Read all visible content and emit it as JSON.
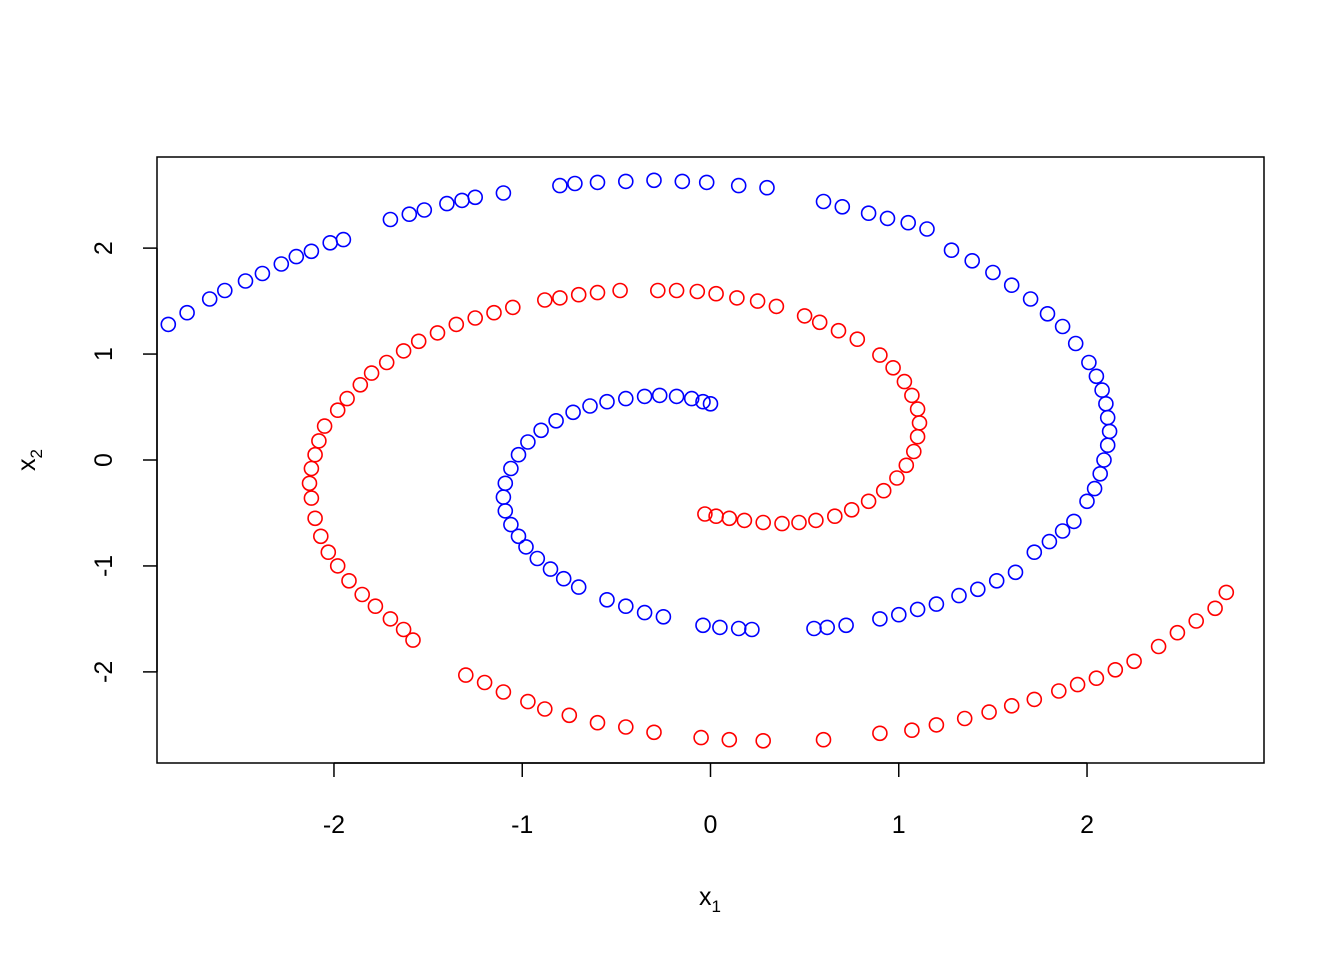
{
  "chart_data": {
    "type": "scatter",
    "title": "",
    "xlabel": {
      "base": "x",
      "sub": "1"
    },
    "ylabel": {
      "base": "x",
      "sub": "2"
    },
    "xlim": [
      -2.94,
      2.94
    ],
    "ylim": [
      -2.86,
      2.86
    ],
    "x_ticks": [
      -2,
      -1,
      0,
      1,
      2
    ],
    "x_tick_labels": [
      "-2",
      "-1",
      "0",
      "1",
      "2"
    ],
    "y_ticks": [
      -2,
      -1,
      0,
      1,
      2
    ],
    "y_tick_labels": [
      "-2",
      "-1",
      "0",
      "1",
      "2"
    ],
    "grid": false,
    "marker": "open-circle",
    "series": [
      {
        "color": "#0000ff",
        "points": [
          [
            0.0,
            0.53
          ],
          [
            -0.04,
            0.55
          ],
          [
            -0.1,
            0.58
          ],
          [
            -0.18,
            0.6
          ],
          [
            -0.27,
            0.61
          ],
          [
            -0.35,
            0.6
          ],
          [
            -0.45,
            0.58
          ],
          [
            -0.55,
            0.55
          ],
          [
            -0.64,
            0.51
          ],
          [
            -0.73,
            0.45
          ],
          [
            -0.82,
            0.37
          ],
          [
            -0.9,
            0.28
          ],
          [
            -0.97,
            0.17
          ],
          [
            -1.02,
            0.05
          ],
          [
            -1.06,
            -0.08
          ],
          [
            -1.09,
            -0.22
          ],
          [
            -1.1,
            -0.35
          ],
          [
            -1.09,
            -0.48
          ],
          [
            -1.06,
            -0.61
          ],
          [
            -1.02,
            -0.72
          ],
          [
            -0.98,
            -0.82
          ],
          [
            -0.92,
            -0.93
          ],
          [
            -0.85,
            -1.03
          ],
          [
            -0.78,
            -1.12
          ],
          [
            -0.7,
            -1.2
          ],
          [
            -0.55,
            -1.32
          ],
          [
            -0.45,
            -1.38
          ],
          [
            -0.35,
            -1.44
          ],
          [
            -0.25,
            -1.48
          ],
          [
            -0.04,
            -1.56
          ],
          [
            0.05,
            -1.58
          ],
          [
            0.15,
            -1.59
          ],
          [
            0.22,
            -1.6
          ],
          [
            0.55,
            -1.59
          ],
          [
            0.62,
            -1.58
          ],
          [
            0.72,
            -1.56
          ],
          [
            0.9,
            -1.5
          ],
          [
            1.0,
            -1.46
          ],
          [
            1.1,
            -1.41
          ],
          [
            1.2,
            -1.36
          ],
          [
            1.32,
            -1.28
          ],
          [
            1.42,
            -1.22
          ],
          [
            1.52,
            -1.14
          ],
          [
            1.62,
            -1.06
          ],
          [
            1.72,
            -0.87
          ],
          [
            1.8,
            -0.77
          ],
          [
            1.87,
            -0.67
          ],
          [
            1.93,
            -0.58
          ],
          [
            2.0,
            -0.39
          ],
          [
            2.04,
            -0.27
          ],
          [
            2.07,
            -0.13
          ],
          [
            2.09,
            0.0
          ],
          [
            2.11,
            0.14
          ],
          [
            2.12,
            0.27
          ],
          [
            2.11,
            0.4
          ],
          [
            2.1,
            0.53
          ],
          [
            2.08,
            0.66
          ],
          [
            2.05,
            0.79
          ],
          [
            2.01,
            0.92
          ],
          [
            1.94,
            1.1
          ],
          [
            1.87,
            1.26
          ],
          [
            1.79,
            1.38
          ],
          [
            1.7,
            1.52
          ],
          [
            1.6,
            1.65
          ],
          [
            1.5,
            1.77
          ],
          [
            1.39,
            1.88
          ],
          [
            1.28,
            1.98
          ],
          [
            1.15,
            2.18
          ],
          [
            1.05,
            2.24
          ],
          [
            0.94,
            2.28
          ],
          [
            0.84,
            2.33
          ],
          [
            0.7,
            2.39
          ],
          [
            0.6,
            2.44
          ],
          [
            0.3,
            2.57
          ],
          [
            0.15,
            2.59
          ],
          [
            -0.02,
            2.62
          ],
          [
            -0.15,
            2.63
          ],
          [
            -0.3,
            2.64
          ],
          [
            -0.45,
            2.63
          ],
          [
            -0.6,
            2.62
          ],
          [
            -0.72,
            2.61
          ],
          [
            -0.8,
            2.59
          ],
          [
            -1.1,
            2.52
          ],
          [
            -1.25,
            2.48
          ],
          [
            -1.32,
            2.45
          ],
          [
            -1.4,
            2.42
          ],
          [
            -1.52,
            2.36
          ],
          [
            -1.6,
            2.32
          ],
          [
            -1.7,
            2.27
          ],
          [
            -1.95,
            2.08
          ],
          [
            -2.02,
            2.05
          ],
          [
            -2.12,
            1.97
          ],
          [
            -2.2,
            1.92
          ],
          [
            -2.28,
            1.85
          ],
          [
            -2.38,
            1.76
          ],
          [
            -2.47,
            1.69
          ],
          [
            -2.58,
            1.6
          ],
          [
            -2.66,
            1.52
          ],
          [
            -2.78,
            1.39
          ],
          [
            -2.88,
            1.28
          ]
        ]
      },
      {
        "color": "#ff0000",
        "points": [
          [
            -0.03,
            -0.51
          ],
          [
            0.03,
            -0.53
          ],
          [
            0.1,
            -0.55
          ],
          [
            0.18,
            -0.57
          ],
          [
            0.28,
            -0.59
          ],
          [
            0.38,
            -0.6
          ],
          [
            0.47,
            -0.59
          ],
          [
            0.56,
            -0.57
          ],
          [
            0.66,
            -0.53
          ],
          [
            0.75,
            -0.47
          ],
          [
            0.84,
            -0.39
          ],
          [
            0.92,
            -0.29
          ],
          [
            0.99,
            -0.17
          ],
          [
            1.04,
            -0.05
          ],
          [
            1.08,
            0.08
          ],
          [
            1.1,
            0.22
          ],
          [
            1.11,
            0.35
          ],
          [
            1.1,
            0.48
          ],
          [
            1.07,
            0.61
          ],
          [
            1.03,
            0.74
          ],
          [
            0.97,
            0.87
          ],
          [
            0.9,
            0.99
          ],
          [
            0.78,
            1.14
          ],
          [
            0.68,
            1.22
          ],
          [
            0.58,
            1.3
          ],
          [
            0.5,
            1.36
          ],
          [
            0.35,
            1.45
          ],
          [
            0.25,
            1.5
          ],
          [
            0.14,
            1.53
          ],
          [
            0.03,
            1.57
          ],
          [
            -0.07,
            1.59
          ],
          [
            -0.18,
            1.6
          ],
          [
            -0.28,
            1.6
          ],
          [
            -0.48,
            1.6
          ],
          [
            -0.6,
            1.58
          ],
          [
            -0.7,
            1.56
          ],
          [
            -0.8,
            1.53
          ],
          [
            -0.88,
            1.51
          ],
          [
            -1.05,
            1.44
          ],
          [
            -1.15,
            1.39
          ],
          [
            -1.25,
            1.34
          ],
          [
            -1.35,
            1.28
          ],
          [
            -1.45,
            1.2
          ],
          [
            -1.55,
            1.12
          ],
          [
            -1.63,
            1.03
          ],
          [
            -1.72,
            0.92
          ],
          [
            -1.8,
            0.82
          ],
          [
            -1.86,
            0.71
          ],
          [
            -1.93,
            0.58
          ],
          [
            -1.98,
            0.47
          ],
          [
            -2.05,
            0.32
          ],
          [
            -2.08,
            0.18
          ],
          [
            -2.1,
            0.05
          ],
          [
            -2.12,
            -0.08
          ],
          [
            -2.13,
            -0.22
          ],
          [
            -2.12,
            -0.36
          ],
          [
            -2.1,
            -0.55
          ],
          [
            -2.07,
            -0.72
          ],
          [
            -2.03,
            -0.87
          ],
          [
            -1.98,
            -1.0
          ],
          [
            -1.92,
            -1.14
          ],
          [
            -1.85,
            -1.27
          ],
          [
            -1.78,
            -1.38
          ],
          [
            -1.7,
            -1.5
          ],
          [
            -1.63,
            -1.6
          ],
          [
            -1.58,
            -1.7
          ],
          [
            -1.3,
            -2.03
          ],
          [
            -1.2,
            -2.1
          ],
          [
            -1.1,
            -2.19
          ],
          [
            -0.97,
            -2.28
          ],
          [
            -0.88,
            -2.35
          ],
          [
            -0.75,
            -2.41
          ],
          [
            -0.6,
            -2.48
          ],
          [
            -0.45,
            -2.52
          ],
          [
            -0.3,
            -2.57
          ],
          [
            -0.05,
            -2.62
          ],
          [
            0.1,
            -2.64
          ],
          [
            0.28,
            -2.65
          ],
          [
            0.6,
            -2.64
          ],
          [
            0.9,
            -2.58
          ],
          [
            1.07,
            -2.55
          ],
          [
            1.2,
            -2.5
          ],
          [
            1.35,
            -2.44
          ],
          [
            1.48,
            -2.38
          ],
          [
            1.6,
            -2.32
          ],
          [
            1.72,
            -2.26
          ],
          [
            1.85,
            -2.18
          ],
          [
            1.95,
            -2.12
          ],
          [
            2.05,
            -2.06
          ],
          [
            2.15,
            -1.98
          ],
          [
            2.25,
            -1.9
          ],
          [
            2.38,
            -1.76
          ],
          [
            2.48,
            -1.63
          ],
          [
            2.58,
            -1.52
          ],
          [
            2.68,
            -1.4
          ],
          [
            2.74,
            -1.25
          ]
        ]
      }
    ]
  }
}
